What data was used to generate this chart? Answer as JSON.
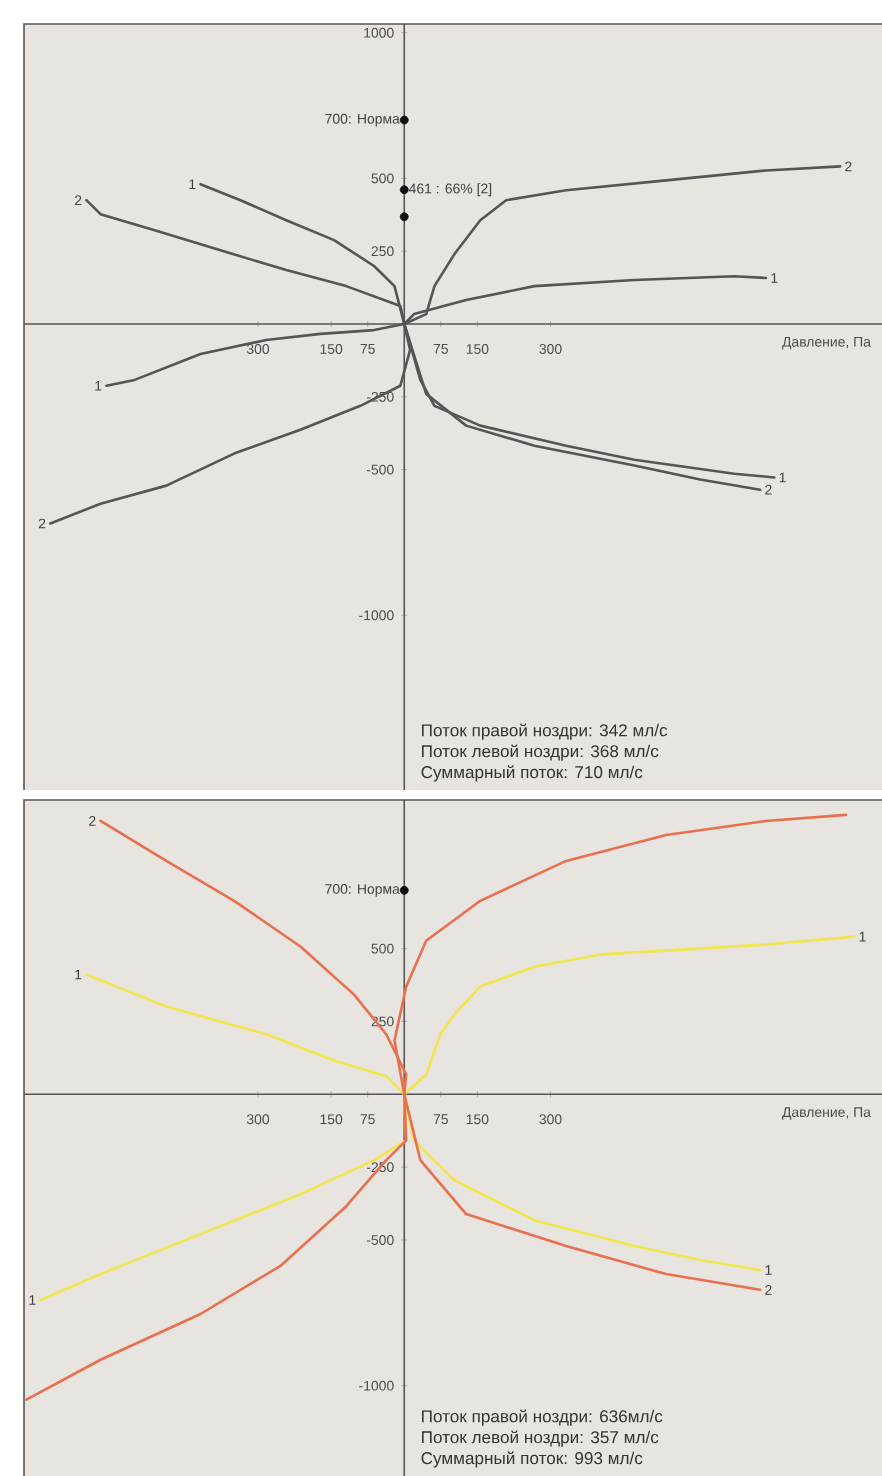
{
  "chart_data": [
    {
      "type": "line",
      "xlabel": "Давление, Па",
      "xlim": [
        -780,
        980
      ],
      "ylim": [
        -1600,
        1030
      ],
      "xticks": [
        {
          "value": -300,
          "label": "300"
        },
        {
          "value": -150,
          "label": "150"
        },
        {
          "value": -75,
          "label": "75"
        },
        75,
        150,
        300
      ],
      "yticks": [
        -1000,
        -500,
        -250,
        250,
        500,
        1000
      ],
      "series": [
        {
          "color": "#555555",
          "x": [
            -418,
            -336,
            -242,
            -144,
            -62,
            -20,
            0,
            12,
            33,
            62,
            156,
            332,
            472,
            677,
            759
          ],
          "values": [
            480,
            425,
            356,
            288,
            199,
            130,
            0,
            -68,
            -192,
            -281,
            -349,
            -418,
            -466,
            -514,
            -527
          ]
        },
        {
          "color": "#555555",
          "x": [
            -652,
            -623,
            -512,
            -377,
            -242,
            -119,
            -8,
            0,
            45,
            127,
            267,
            472,
            607,
            730
          ],
          "values": [
            425,
            377,
            322,
            253,
            185,
            130,
            62,
            0,
            -240,
            -349,
            -418,
            -486,
            -534,
            -569
          ]
        },
        {
          "color": "#555555",
          "x": [
            -611,
            -553,
            -418,
            -283,
            -172,
            -62,
            0,
            20,
            127,
            267,
            472,
            677,
            742
          ],
          "values": [
            -212,
            -192,
            -103,
            -55,
            -34,
            -21,
            0,
            34,
            82,
            130,
            151,
            164,
            158
          ]
        },
        {
          "color": "#555555",
          "x": [
            -726,
            -623,
            -488,
            -349,
            -213,
            -90,
            -8,
            12,
            0,
            45,
            62,
            103,
            156,
            209,
            332,
            537,
            742,
            894
          ],
          "values": [
            -685,
            -617,
            -555,
            -445,
            -363,
            -281,
            -212,
            -89,
            0,
            34,
            130,
            240,
            356,
            425,
            459,
            493,
            527,
            541
          ]
        },
        {
          "type": "scatter",
          "marker": "circle",
          "color": "#111111",
          "x": [
            0,
            0,
            0
          ],
          "values": [
            700,
            461,
            368
          ]
        }
      ],
      "annotations": [
        {
          "text": "700: Норма",
          "x": 0,
          "y": 700
        },
        {
          "text": "461 : 66% [2]",
          "x": 0,
          "y": 461
        },
        {
          "text": "1",
          "x": -418,
          "y": 480
        },
        {
          "text": "2",
          "x": -652,
          "y": 425
        },
        {
          "text": "2",
          "x": 894,
          "y": 541
        },
        {
          "text": "1",
          "x": 742,
          "y": 158
        },
        {
          "text": "1",
          "x": -611,
          "y": -212
        },
        {
          "text": "2",
          "x": -726,
          "y": -685
        },
        {
          "text": "1",
          "x": 759,
          "y": -527
        },
        {
          "text": "2",
          "x": 730,
          "y": -569
        },
        "Поток правой ноздри: 342 мл/с",
        "Поток левой ноздри: 368 мл/с",
        "Суммарный поток: 710 мл/с"
      ]
    },
    {
      "type": "line",
      "xlabel": "Давление, Па",
      "xlim": [
        -780,
        980
      ],
      "ylim": [
        -1310,
        1010
      ],
      "xticks": [
        {
          "value": -300,
          "label": "300"
        },
        {
          "value": -150,
          "label": "150"
        },
        {
          "value": -75,
          "label": "75"
        },
        75,
        150,
        300
      ],
      "yticks": [
        -1000,
        -500,
        -250,
        250,
        500
      ],
      "series": [
        {
          "color": "#f2e64e",
          "x": [
            -652,
            -488,
            -283,
            -144,
            -37,
            0,
            20,
            103,
            267,
            472,
            607,
            730
          ],
          "values": [
            411,
            301,
            206,
            116,
            62,
            0,
            -158,
            -295,
            -432,
            -521,
            -569,
            -603
          ]
        },
        {
          "color": "#f2e64e",
          "x": [
            -746,
            -623,
            -418,
            -213,
            -62,
            4,
            0,
            45,
            74,
            103,
            156,
            267,
            402,
            537,
            742,
            923
          ],
          "values": [
            -706,
            -617,
            -480,
            -343,
            -226,
            -158,
            0,
            68,
            206,
            274,
            370,
            438,
            480,
            493,
            514,
            541
          ]
        },
        {
          "color": "#e8704f",
          "x": [
            -623,
            -488,
            -349,
            -213,
            -103,
            -37,
            4,
            0,
            33,
            127,
            332,
            537,
            730
          ],
          "values": [
            938,
            801,
            664,
            507,
            342,
            206,
            68,
            0,
            -226,
            -411,
            -521,
            -617,
            -671
          ]
        },
        {
          "color": "#e8704f",
          "x": [
            -775,
            -623,
            -418,
            -254,
            -119,
            -37,
            4,
            0,
            -20,
            4,
            45,
            156,
            332,
            537,
            742,
            906
          ],
          "values": [
            -1048,
            -911,
            -754,
            -589,
            -384,
            -226,
            -158,
            0,
            185,
            370,
            527,
            664,
            801,
            890,
            938,
            959
          ]
        },
        {
          "type": "scatter",
          "marker": "circle",
          "color": "#111111",
          "x": [
            0
          ],
          "values": [
            700
          ]
        }
      ],
      "annotations": [
        {
          "text": "700: Норма",
          "x": 0,
          "y": 700
        },
        {
          "text": "2",
          "x": -623,
          "y": 938
        },
        {
          "text": "1",
          "x": -652,
          "y": 411
        },
        {
          "text": "1",
          "x": 923,
          "y": 541
        },
        {
          "text": "1",
          "x": -746,
          "y": -706
        },
        {
          "text": "1",
          "x": 730,
          "y": -603
        },
        {
          "text": "2",
          "x": 730,
          "y": -671
        },
        "Поток правой ноздри: 636мл/с",
        "Поток левой ноздри: 357 мл/с",
        "Суммарный поток: 993 мл/с"
      ]
    }
  ]
}
